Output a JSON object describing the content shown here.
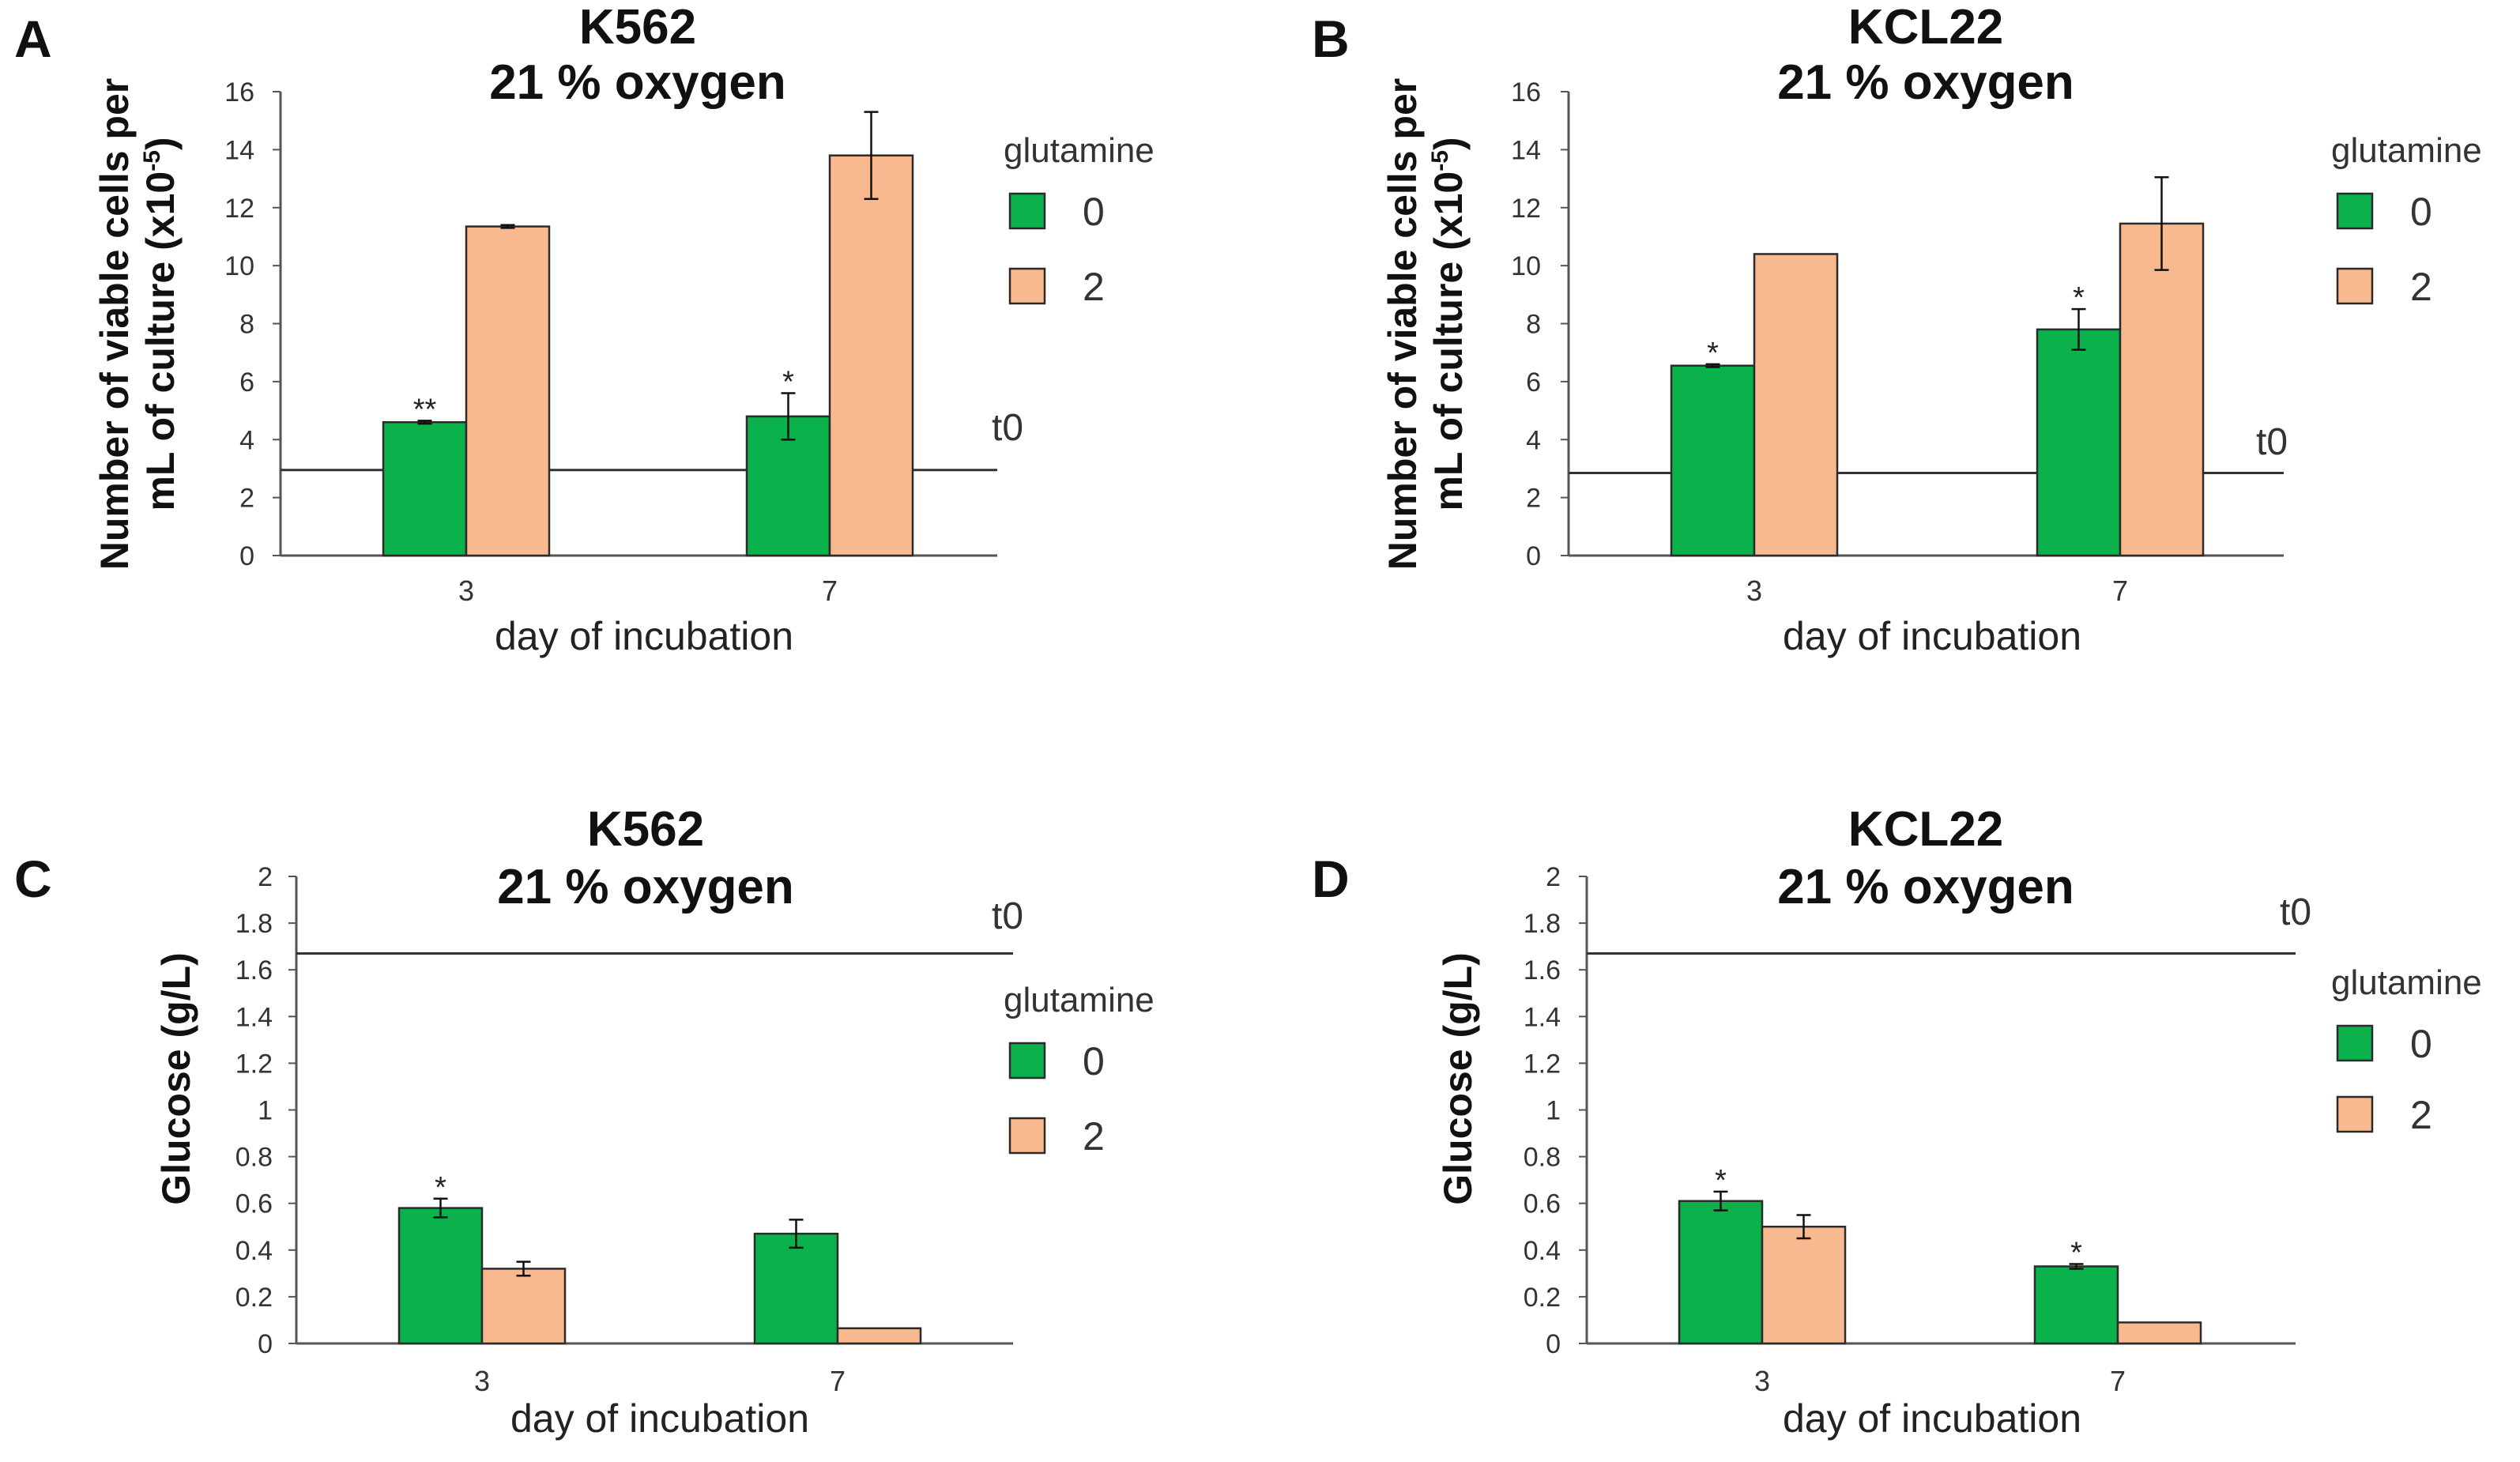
{
  "colors": {
    "g0": "#0bb14a",
    "g2": "#f9b98e",
    "stroke": "#2b2b2b"
  },
  "legend": {
    "title": "glutamine",
    "labels": [
      "0",
      "2"
    ]
  },
  "chart_data": [
    {
      "type": "bar",
      "panel": "A",
      "title": [
        "K562",
        "21 % oxygen"
      ],
      "ylabel": [
        "Number of viable cells per",
        "mL of culture (x10",
        "-5",
        ")"
      ],
      "xlabel": "day of incubation",
      "categories": [
        "3",
        "7"
      ],
      "ylim": [
        0,
        16
      ],
      "ystep": 2,
      "ydec": 0,
      "series": [
        {
          "name": "0",
          "values": [
            4.6,
            4.8
          ],
          "errors": [
            0.05,
            0.8
          ]
        },
        {
          "name": "2",
          "values": [
            11.35,
            13.8
          ],
          "errors": [
            0.05,
            1.5
          ]
        }
      ],
      "annotations": [
        [
          "**",
          ""
        ],
        [
          "*",
          ""
        ]
      ],
      "reference": {
        "label": "t0",
        "value": 2.95
      }
    },
    {
      "type": "bar",
      "panel": "B",
      "title": [
        "KCL22",
        "21 % oxygen"
      ],
      "ylabel": [
        "Number of viable cells per",
        "mL of culture (x10",
        "-5",
        ")"
      ],
      "xlabel": "day of incubation",
      "categories": [
        "3",
        "7"
      ],
      "ylim": [
        0,
        16
      ],
      "ystep": 2,
      "ydec": 0,
      "series": [
        {
          "name": "0",
          "values": [
            6.55,
            7.8
          ],
          "errors": [
            0.05,
            0.7
          ]
        },
        {
          "name": "2",
          "values": [
            10.4,
            11.45
          ],
          "errors": [
            0.0,
            1.6
          ]
        }
      ],
      "annotations": [
        [
          "*",
          ""
        ],
        [
          "*",
          ""
        ]
      ],
      "reference": {
        "label": "t0",
        "value": 2.85
      }
    },
    {
      "type": "bar",
      "panel": "C",
      "title": [
        "K562",
        "21 % oxygen"
      ],
      "ylabel": [
        "Glucose (g/L)"
      ],
      "xlabel": "day of incubation",
      "categories": [
        "3",
        "7"
      ],
      "ylim": [
        0,
        2
      ],
      "ystep": 0.2,
      "ydec": 1,
      "series": [
        {
          "name": "0",
          "values": [
            0.58,
            0.47
          ],
          "errors": [
            0.04,
            0.06
          ]
        },
        {
          "name": "2",
          "values": [
            0.32,
            0.065
          ],
          "errors": [
            0.03,
            0.0
          ]
        }
      ],
      "annotations": [
        [
          "*",
          ""
        ],
        [
          "",
          ""
        ]
      ],
      "reference": {
        "label": "t0",
        "value": 1.67
      }
    },
    {
      "type": "bar",
      "panel": "D",
      "title": [
        "KCL22",
        "21 % oxygen"
      ],
      "ylabel": [
        "Glucose (g/L)"
      ],
      "xlabel": "day of incubation",
      "categories": [
        "3",
        "7"
      ],
      "ylim": [
        0,
        2
      ],
      "ystep": 0.2,
      "ydec": 1,
      "series": [
        {
          "name": "0",
          "values": [
            0.61,
            0.33
          ],
          "errors": [
            0.04,
            0.01
          ]
        },
        {
          "name": "2",
          "values": [
            0.5,
            0.09
          ],
          "errors": [
            0.05,
            0.0
          ]
        }
      ],
      "annotations": [
        [
          "*",
          ""
        ],
        [
          "*",
          ""
        ]
      ],
      "reference": {
        "label": "t0",
        "value": 1.67
      }
    }
  ]
}
